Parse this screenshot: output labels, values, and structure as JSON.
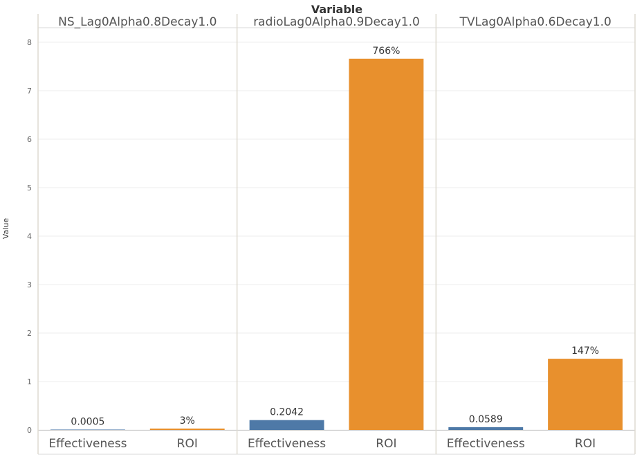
{
  "chart_data": {
    "type": "bar",
    "title": "Variable",
    "ylabel": "Value",
    "ylim": [
      0,
      8.3
    ],
    "yticks": [
      0,
      1,
      2,
      3,
      4,
      5,
      6,
      7,
      8
    ],
    "grid": true,
    "colors": {
      "Effectiveness": "#4e79a7",
      "ROI": "#e8902d"
    },
    "panels": [
      {
        "name": "NS_Lag0Alpha0.8Decay1.0",
        "bars": [
          {
            "category": "Effectiveness",
            "value": 0.0005,
            "label": "0.0005"
          },
          {
            "category": "ROI",
            "value": 0.03,
            "label": "3%"
          }
        ]
      },
      {
        "name": "radioLag0Alpha0.9Decay1.0",
        "bars": [
          {
            "category": "Effectiveness",
            "value": 0.2042,
            "label": "0.2042"
          },
          {
            "category": "ROI",
            "value": 7.66,
            "label": "766%"
          }
        ]
      },
      {
        "name": "TVLag0Alpha0.6Decay1.0",
        "bars": [
          {
            "category": "Effectiveness",
            "value": 0.0589,
            "label": "0.0589"
          },
          {
            "category": "ROI",
            "value": 1.47,
            "label": "147%"
          }
        ]
      }
    ]
  }
}
